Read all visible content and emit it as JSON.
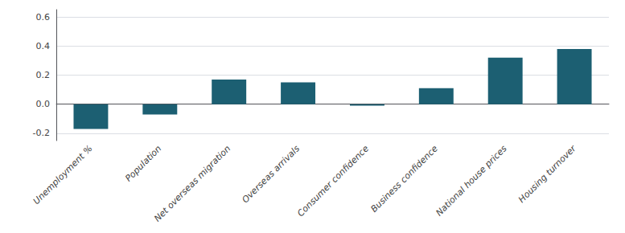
{
  "chart_data": {
    "type": "bar",
    "categories": [
      "Unemployment %",
      "Population",
      "Net overseas migration",
      "Overseas arrivals",
      "Consumer confidence",
      "Business confidence",
      "National house prices",
      "Housing turnover"
    ],
    "values": [
      -0.17,
      -0.07,
      0.17,
      0.15,
      -0.01,
      0.11,
      0.32,
      0.38
    ],
    "color": "#1c5f72",
    "ylim": [
      -0.25,
      0.65
    ],
    "yticks": [
      -0.2,
      {
        "value": 0,
        "label": "0.0"
      },
      0.2,
      0.4,
      0.6
    ],
    "grid": true
  }
}
